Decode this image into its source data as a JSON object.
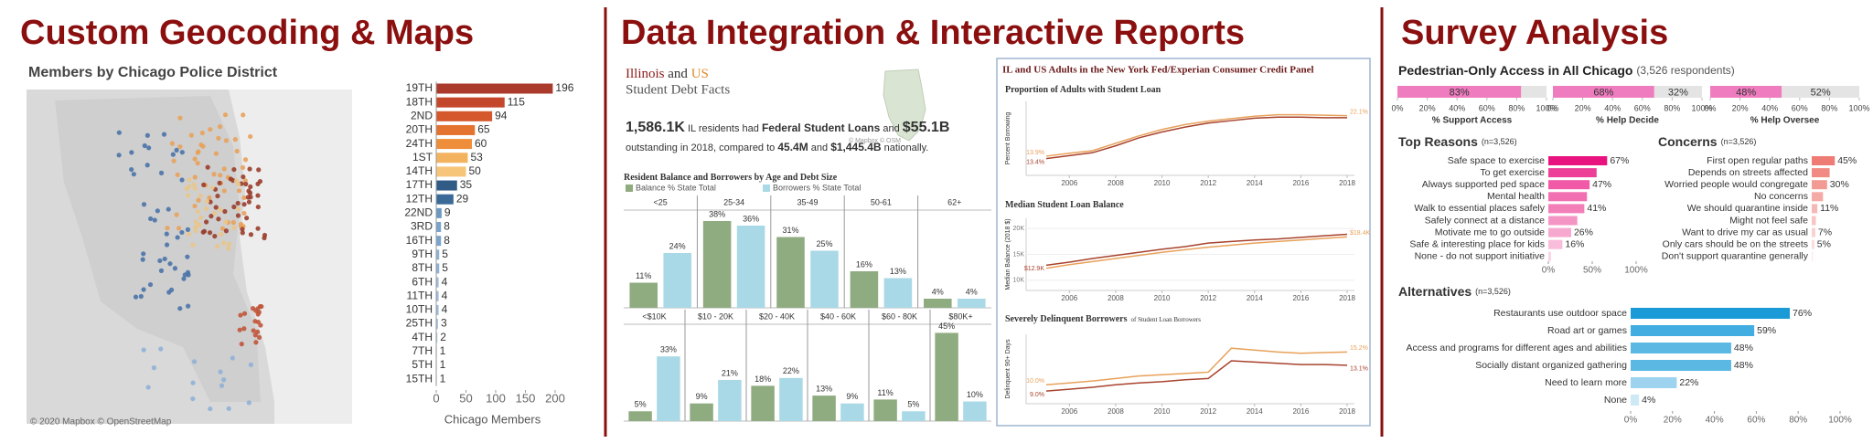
{
  "sections": [
    {
      "title": "Custom Geocoding & Maps"
    },
    {
      "title": "Data Integration & Interactive Reports"
    },
    {
      "title": "Survey Analysis"
    }
  ],
  "map": {
    "title": "Members by Chicago Police District",
    "attribution": "© 2020 Mapbox © OpenStreetMap"
  },
  "debt_facts": {
    "state": "Illinois",
    "and": "and",
    "us": "US",
    "subtitle": "Student Debt Facts",
    "sentence": [
      "1,586.1K",
      "IL residents had",
      "Federal Student Loans",
      "and",
      "$55.1B",
      "outstanding in 2018, compared to",
      "45.4M",
      "and",
      "$1,445.4B",
      "nationally."
    ],
    "map_attribution": "© Mapbox © OSM"
  },
  "credit_panel": {
    "title": "IL and US Adults in the New York Fed/Experian Consumer Credit Panel"
  },
  "survey": {
    "title": "Pedestrian-Only Access in All Chicago",
    "subtitle": "(3,526 respondents)"
  },
  "chart_data": [
    {
      "type": "hbar",
      "xlabel": "Chicago Members",
      "categories": [
        "19TH",
        "18TH",
        "2ND",
        "20TH",
        "24TH",
        "1ST",
        "14TH",
        "17TH",
        "12TH",
        "22ND",
        "3RD",
        "16TH",
        "9TH",
        "8TH",
        "6TH",
        "11TH",
        "10TH",
        "25TH",
        "4TH",
        "7TH",
        "5TH",
        "15TH"
      ],
      "values": [
        196,
        115,
        94,
        65,
        60,
        53,
        50,
        35,
        29,
        9,
        8,
        8,
        5,
        5,
        4,
        4,
        4,
        3,
        2,
        1,
        1,
        1
      ],
      "colors": [
        "#a93a2c",
        "#c4472c",
        "#d4582b",
        "#e4732f",
        "#ee8d3a",
        "#f3b25e",
        "#f6c57a",
        "#2f5b86",
        "#3b6a98",
        "#6b98c4",
        "#7aa4cd",
        "#7aa4cd",
        "#8eb2d6",
        "#8eb2d6",
        "#9dbcdb",
        "#9dbcdb",
        "#9dbcdb",
        "#a9c5e0",
        "#b3cce4",
        "#bcd3e8",
        "#bcd3e8",
        "#bcd3e8"
      ],
      "xlim": [
        0,
        220
      ],
      "xticks": [
        0,
        50,
        100,
        150,
        200
      ]
    },
    {
      "type": "grouped_bar",
      "title": "Resident Balance and Borrowers by Age and Debt Size",
      "categories": [
        "<25",
        "25-34",
        "35-49",
        "50-61",
        "62+"
      ],
      "series": [
        {
          "name": "Balance % State Total",
          "color": "#8fab80",
          "values": [
            11,
            38,
            31,
            16,
            4
          ],
          "value_labels": [
            "11%",
            "38%",
            "31%",
            "16%",
            "4%"
          ]
        },
        {
          "name": "Borrowers % State Total",
          "color": "#a9d9e6",
          "values": [
            24,
            36,
            25,
            13,
            4
          ],
          "value_labels": [
            "24%",
            "36%",
            "25%",
            "13%",
            "4%"
          ]
        }
      ],
      "ylim": [
        0,
        42
      ]
    },
    {
      "type": "grouped_bar",
      "categories": [
        "<$10K",
        "$10 - 20K",
        "$20 - 40K",
        "$40 - 60K",
        "$60 - 80K",
        "$80K+"
      ],
      "series": [
        {
          "color": "#8fab80",
          "values": [
            5,
            9,
            18,
            13,
            11,
            45
          ],
          "value_labels": [
            "5%",
            "9%",
            "18%",
            "13%",
            "11%",
            "45%"
          ]
        },
        {
          "color": "#a9d9e6",
          "values": [
            33,
            21,
            22,
            9,
            5,
            10
          ],
          "value_labels": [
            "33%",
            "21%",
            "22%",
            "9%",
            "5%",
            "10%"
          ]
        }
      ],
      "ylim": [
        0,
        48
      ]
    },
    {
      "type": "line",
      "title": "Proportion of Adults with Student Loan",
      "ylabel": "Percent Borrowing",
      "x": [
        2005,
        2006,
        2007,
        2008,
        2009,
        2010,
        2011,
        2012,
        2013,
        2014,
        2015,
        2016,
        2017,
        2018
      ],
      "series": [
        {
          "color": "#a8432e",
          "values": [
            13.4,
            14.0,
            14.6,
            16.0,
            17.6,
            18.8,
            19.8,
            20.6,
            21.1,
            21.6,
            21.8,
            21.8,
            21.7,
            21.7
          ],
          "value_labels": [
            "13.4%",
            null,
            null,
            null,
            null,
            null,
            null,
            null,
            null,
            null,
            null,
            null,
            null,
            null
          ]
        },
        {
          "color": "#e8a15a",
          "values": [
            13.9,
            14.5,
            15.0,
            16.5,
            18.0,
            19.3,
            20.3,
            21.0,
            21.5,
            22.0,
            22.3,
            22.3,
            22.2,
            22.1
          ],
          "value_labels": [
            "13.9%",
            null,
            null,
            null,
            null,
            null,
            null,
            null,
            null,
            null,
            null,
            null,
            null,
            "22.1%"
          ]
        }
      ],
      "xlim": [
        2005,
        2018
      ],
      "xticks": [
        2006,
        2008,
        2010,
        2012,
        2014,
        2016,
        2018
      ],
      "ylim": [
        10,
        25
      ]
    },
    {
      "type": "line",
      "title": "Median Student Loan Balance",
      "ylabel": "Median Balance (2018 $)",
      "x": [
        2005,
        2006,
        2007,
        2008,
        2009,
        2010,
        2011,
        2012,
        2013,
        2014,
        2015,
        2016,
        2017,
        2018
      ],
      "series": [
        {
          "color": "#a8432e",
          "values": [
            12900,
            13500,
            14200,
            14800,
            15400,
            16000,
            16500,
            17200,
            17500,
            17800,
            18000,
            18300,
            18600,
            18900
          ],
          "value_labels": [
            "$12.9K",
            null,
            null,
            null,
            null,
            null,
            null,
            null,
            null,
            null,
            null,
            null,
            null,
            null
          ]
        },
        {
          "color": "#e8a15a",
          "values": [
            12300,
            13000,
            13600,
            14200,
            14800,
            15400,
            15900,
            16400,
            16800,
            17200,
            17500,
            17800,
            18100,
            18400
          ],
          "value_labels": [
            null,
            null,
            null,
            null,
            null,
            null,
            null,
            null,
            null,
            null,
            null,
            null,
            null,
            "$18.4K"
          ]
        }
      ],
      "xlim": [
        2005,
        2018
      ],
      "xticks": [
        2006,
        2008,
        2010,
        2012,
        2014,
        2016,
        2018
      ],
      "ylim": [
        8000,
        22000
      ],
      "yticks": [
        {
          "value": 10000,
          "label": "10K"
        },
        {
          "value": 15000,
          "label": "15K"
        },
        {
          "value": 20000,
          "label": "20K"
        }
      ]
    },
    {
      "type": "line",
      "title": "Severely Delinquent Borrowers",
      "subtitle": "of Student Loan Borrowers",
      "ylabel": "Delinquent 90+ Days",
      "x": [
        2005,
        2006,
        2007,
        2008,
        2009,
        2010,
        2011,
        2012,
        2013,
        2014,
        2015,
        2016,
        2017,
        2018
      ],
      "series": [
        {
          "color": "#a8432e",
          "values": [
            9.0,
            9.3,
            9.6,
            10.0,
            10.3,
            10.5,
            10.8,
            11.0,
            13.8,
            13.6,
            13.4,
            13.2,
            13.2,
            13.1
          ],
          "value_labels": [
            "9.0%",
            null,
            null,
            null,
            null,
            null,
            null,
            null,
            null,
            null,
            null,
            null,
            null,
            "13.1%"
          ]
        },
        {
          "color": "#e8a15a",
          "values": [
            10.0,
            10.3,
            10.6,
            11.0,
            11.4,
            11.6,
            11.8,
            12.0,
            15.8,
            15.5,
            15.2,
            15.0,
            15.1,
            15.2
          ],
          "value_labels": [
            "10.0%",
            null,
            null,
            null,
            null,
            null,
            null,
            null,
            null,
            null,
            null,
            null,
            null,
            "15.2%"
          ]
        }
      ],
      "xlim": [
        2005,
        2018
      ],
      "xticks": [
        2006,
        2008,
        2010,
        2012,
        2014,
        2016,
        2018
      ],
      "ylim": [
        7,
        18
      ]
    },
    {
      "type": "stacked_hbar",
      "categories": [
        "% Support Access",
        "% Help Decide",
        "% Help Oversee"
      ],
      "series": [
        {
          "color": "#f07cc0",
          "values": [
            83,
            68,
            48
          ],
          "value_labels": [
            "83%",
            "68%",
            "48%"
          ]
        },
        {
          "color": "#e4e4e4",
          "values": [
            17,
            32,
            52
          ],
          "value_labels": [
            null,
            "32%",
            "52%"
          ]
        }
      ],
      "xlim": [
        0,
        100
      ],
      "xticks": [
        {
          "value": 0,
          "label": "0%"
        },
        {
          "value": 20,
          "label": "20%"
        },
        {
          "value": 40,
          "label": "40%"
        },
        {
          "value": 60,
          "label": "60%"
        },
        {
          "value": 80,
          "label": "80%"
        },
        {
          "value": 100,
          "label": "100%"
        }
      ]
    },
    {
      "type": "hbar",
      "title": "Top Reasons",
      "subtitle": "(n=3,526)",
      "categories": [
        "Safe space to exercise",
        "To get exercise",
        "Always supported ped space",
        "Mental health",
        "Walk to essential places safely",
        "Safely connect at a distance",
        "Motivate me to go outside",
        "Safe & interesting place for kids",
        "None - do not support initiative"
      ],
      "values": [
        67,
        55,
        47,
        44,
        41,
        33,
        26,
        16,
        3
      ],
      "value_labels": [
        "67%",
        null,
        "47%",
        null,
        "41%",
        null,
        "26%",
        "16%",
        null
      ],
      "colors": [
        "#e8137f",
        "#ed3f98",
        "#f05aa6",
        "#f26fb1",
        "#f37fb9",
        "#f595c5",
        "#f7a8cf",
        "#f9bcda",
        "#fbd3e7"
      ],
      "xlim": [
        0,
        100
      ],
      "xticks": [
        {
          "value": 0,
          "label": "0%"
        },
        {
          "value": 50,
          "label": "50%"
        },
        {
          "value": 100,
          "label": "100%"
        }
      ]
    },
    {
      "type": "hbar",
      "title": "Concerns",
      "subtitle": "(n=3,526)",
      "categories": [
        "First open regular paths",
        "Depends on streets affected",
        "Worried people would congregate",
        "No concerns",
        "We should quarantine inside",
        "Might not feel safe",
        "Want to drive my car as usual",
        "Only cars should be on the streets",
        "Don't support quarantine generally"
      ],
      "values": [
        45,
        35,
        30,
        22,
        11,
        8,
        7,
        5,
        2
      ],
      "value_labels": [
        "45%",
        null,
        "30%",
        null,
        "11%",
        null,
        "7%",
        "5%",
        null
      ],
      "colors": [
        "#ee7b74",
        "#f08a83",
        "#f29a94",
        "#f4aaa5",
        "#f6b8b4",
        "#f8c5c2",
        "#f9d1ce",
        "#fbdcda",
        "#fce6e5"
      ],
      "xlim": [
        0,
        100
      ]
    },
    {
      "type": "hbar",
      "title": "Alternatives",
      "subtitle": "(n=3,526)",
      "categories": [
        "Restaurants use outdoor space",
        "Road art or games",
        "Access and programs for different ages and abilities",
        "Socially distant organized gathering",
        "Need to learn more",
        "None"
      ],
      "values": [
        76,
        59,
        48,
        48,
        22,
        4
      ],
      "value_labels": [
        "76%",
        "59%",
        "48%",
        "48%",
        "22%",
        "4%"
      ],
      "colors": [
        "#1a9bd7",
        "#42ade0",
        "#5ab8e3",
        "#5ab8e3",
        "#9dd3ee",
        "#cde9f6"
      ],
      "xlim": [
        0,
        100
      ],
      "xticks": [
        {
          "value": 0,
          "label": "0%"
        },
        {
          "value": 20,
          "label": "20%"
        },
        {
          "value": 40,
          "label": "40%"
        },
        {
          "value": 60,
          "label": "60%"
        },
        {
          "value": 80,
          "label": "80%"
        },
        {
          "value": 100,
          "label": "100%"
        }
      ]
    }
  ]
}
